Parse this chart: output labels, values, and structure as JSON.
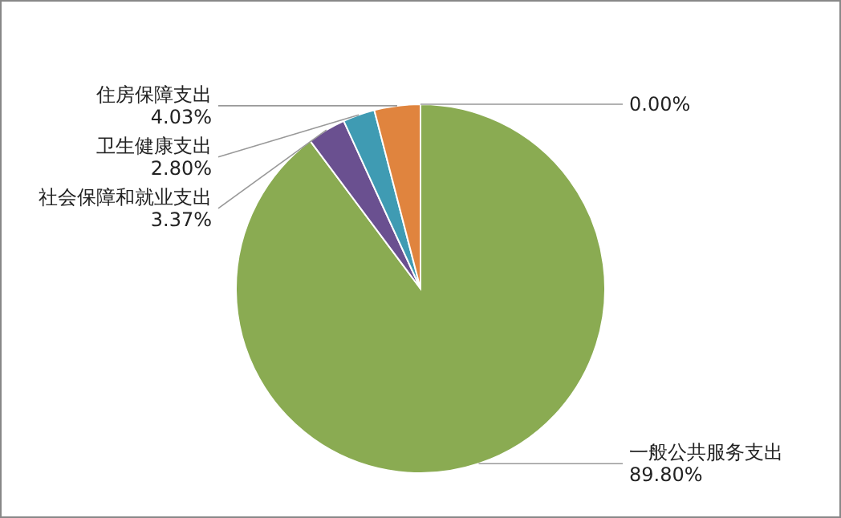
{
  "chart_data": {
    "type": "pie",
    "categories": [
      "一般公共服务支出",
      "社会保障和就业支出",
      "卫生健康支出",
      "住房保障支出",
      null
    ],
    "values": [
      89.8,
      3.37,
      2.8,
      4.03,
      0
    ],
    "value_labels": [
      "89.80%",
      "3.37%",
      "2.80%",
      "4.03%",
      "0.00%"
    ],
    "colors": [
      "#8aab52",
      "#6a5090",
      "#3f9bb3",
      "#e0843e",
      "#4f6fa8"
    ]
  }
}
